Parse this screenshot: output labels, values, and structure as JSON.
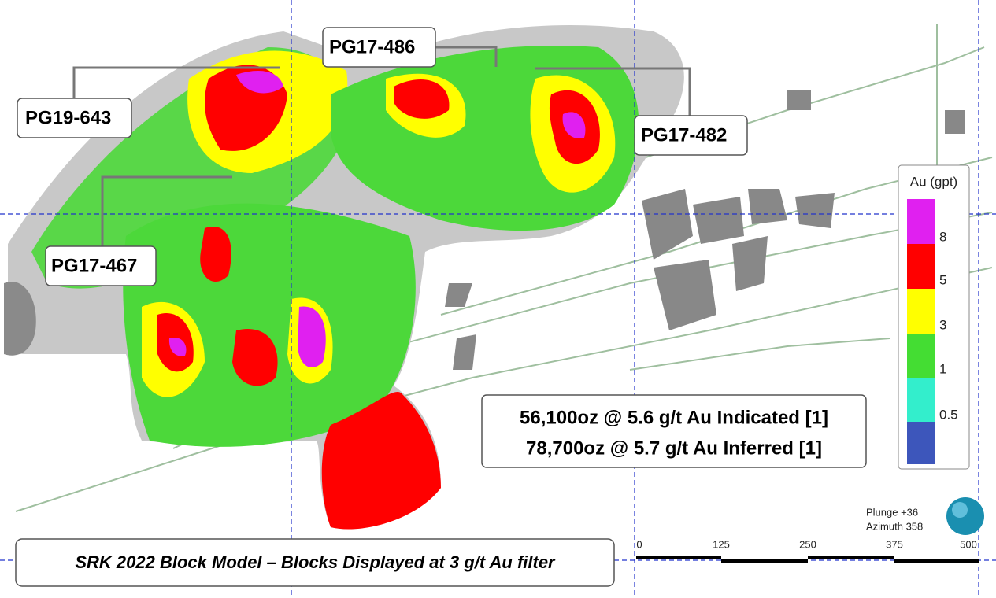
{
  "callouts": [
    "PG19-643",
    "PG17-486",
    "PG17-482",
    "PG17-467"
  ],
  "resource": {
    "lines": [
      "56,100oz @ 5.6 g/t Au Indicated [1]",
      "78,700oz @ 5.7 g/t Au Inferred [1]"
    ]
  },
  "legend": {
    "title": "Au (gpt)",
    "labels": [
      "8",
      "5",
      "3",
      "1",
      "0.5"
    ]
  },
  "view": {
    "plunge": "Plunge +36",
    "azimuth": "Azimuth 358"
  },
  "scale_bar": {
    "labels": [
      "0",
      "125",
      "250",
      "375",
      "500"
    ]
  },
  "caption": "SRK 2022 Block Model – Blocks Displayed at 3 g/t Au filter"
}
